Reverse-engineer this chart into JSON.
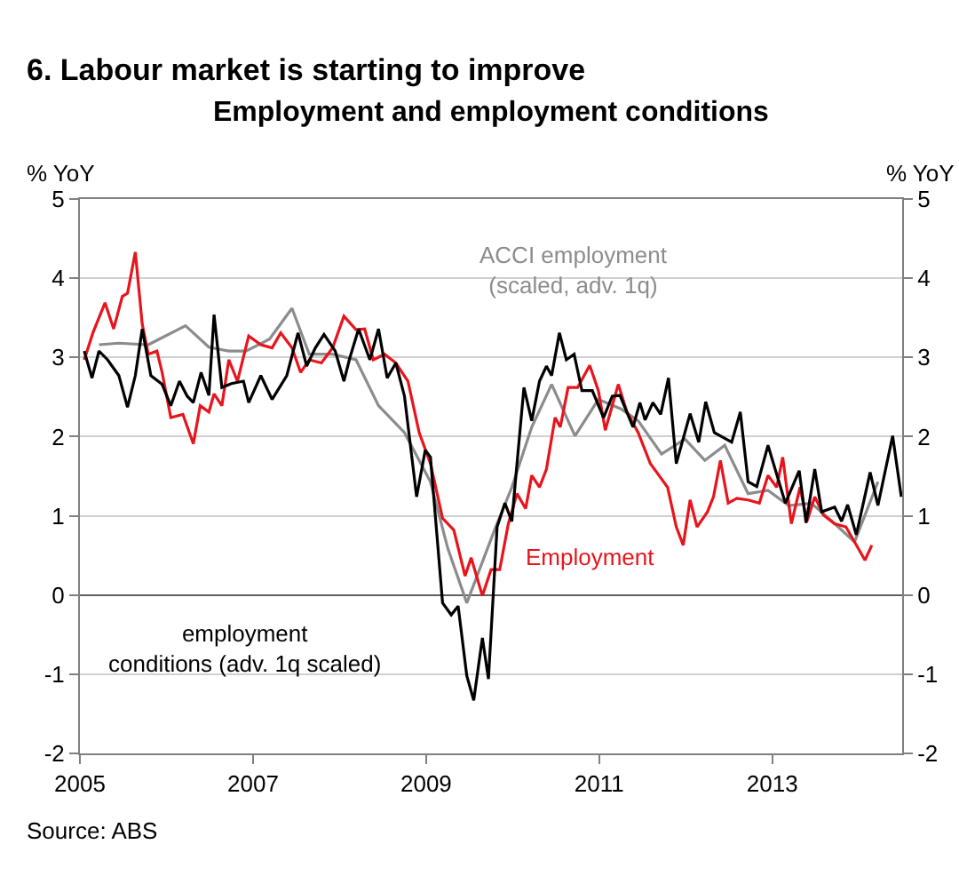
{
  "chart_data": {
    "type": "line",
    "title": "6. Labour market is starting to improve",
    "subtitle": "Employment and employment conditions",
    "ylabel": "% YoY",
    "y2label": "% YoY",
    "xlim": [
      2005,
      2014.5
    ],
    "xticks": [
      2005,
      2007,
      2009,
      2011,
      2013
    ],
    "ylim": [
      -2,
      5
    ],
    "yticks": [
      -2,
      -1,
      0,
      1,
      2,
      3,
      4,
      5
    ],
    "y2lim": [
      -2,
      5
    ],
    "y2ticks": [
      -2,
      -1,
      0,
      1,
      2,
      3,
      4,
      5
    ],
    "grid": "y",
    "legend": false,
    "marker": "none",
    "line_style": "solid",
    "annotations": [
      "Source: ABS"
    ],
    "series": [
      {
        "name": "ACCI employment\n(scaled, adv. 1q)",
        "color": "#8c8c8c",
        "x": [
          2005.22,
          2005.45,
          2005.79,
          2006.22,
          2006.49,
          2006.72,
          2006.92,
          2007.19,
          2007.45,
          2007.65,
          2007.92,
          2008.19,
          2008.45,
          2008.75,
          2009.05,
          2009.25,
          2009.47,
          2009.79,
          2009.99,
          2010.22,
          2010.45,
          2010.72,
          2010.99,
          2011.25,
          2011.45,
          2011.72,
          2011.99,
          2012.22,
          2012.45,
          2012.72,
          2012.95,
          2013.19,
          2013.45,
          2013.72,
          2013.95,
          2014.22
        ],
        "values": [
          3.16,
          3.18,
          3.16,
          3.4,
          3.13,
          3.08,
          3.08,
          3.23,
          3.62,
          3.04,
          3.04,
          2.97,
          2.39,
          2.05,
          1.43,
          0.59,
          -0.1,
          0.82,
          1.36,
          2.12,
          2.66,
          2.01,
          2.47,
          2.35,
          2.2,
          1.78,
          1.97,
          1.7,
          1.89,
          1.28,
          1.32,
          1.13,
          1.16,
          0.9,
          0.67,
          1.43
        ]
      },
      {
        "name": "Employment",
        "color": "#e8141c",
        "x": [
          2005.05,
          2005.15,
          2005.29,
          2005.39,
          2005.49,
          2005.55,
          2005.64,
          2005.72,
          2005.79,
          2005.89,
          2005.95,
          2006.05,
          2006.19,
          2006.31,
          2006.39,
          2006.49,
          2006.55,
          2006.64,
          2006.72,
          2006.82,
          2006.95,
          2007.09,
          2007.22,
          2007.32,
          2007.45,
          2007.55,
          2007.65,
          2007.79,
          2007.92,
          2008.05,
          2008.19,
          2008.29,
          2008.39,
          2008.52,
          2008.65,
          2008.79,
          2008.92,
          2009.05,
          2009.19,
          2009.32,
          2009.45,
          2009.52,
          2009.65,
          2009.75,
          2009.85,
          2009.95,
          2010.05,
          2010.15,
          2010.22,
          2010.31,
          2010.39,
          2010.49,
          2010.55,
          2010.64,
          2010.75,
          2010.89,
          2010.99,
          2011.07,
          2011.22,
          2011.32,
          2011.45,
          2011.59,
          2011.69,
          2011.79,
          2011.89,
          2011.97,
          2012.05,
          2012.13,
          2012.25,
          2012.32,
          2012.4,
          2012.49,
          2012.59,
          2012.72,
          2012.85,
          2012.95,
          2013.05,
          2013.12,
          2013.22,
          2013.32,
          2013.4,
          2013.49,
          2013.59,
          2013.72,
          2013.85,
          2013.95,
          2014.07,
          2014.15
        ],
        "values": [
          2.97,
          3.31,
          3.69,
          3.36,
          3.77,
          3.81,
          4.33,
          3.42,
          3.04,
          3.08,
          2.81,
          2.24,
          2.28,
          1.91,
          2.39,
          2.31,
          2.54,
          2.39,
          2.97,
          2.7,
          3.27,
          3.16,
          3.12,
          3.31,
          3.12,
          2.81,
          2.97,
          2.93,
          3.12,
          3.52,
          3.35,
          3.36,
          2.97,
          3.04,
          2.93,
          2.7,
          2.05,
          1.66,
          0.97,
          0.82,
          0.24,
          0.47,
          -0.01,
          0.32,
          0.32,
          0.9,
          1.28,
          1.09,
          1.51,
          1.36,
          1.59,
          2.24,
          2.12,
          2.62,
          2.62,
          2.9,
          2.58,
          2.08,
          2.66,
          2.31,
          2.05,
          1.66,
          1.51,
          1.36,
          0.86,
          0.63,
          1.2,
          0.86,
          1.05,
          1.24,
          1.7,
          1.16,
          1.22,
          1.2,
          1.16,
          1.51,
          1.36,
          1.74,
          0.9,
          1.36,
          0.93,
          1.24,
          1.01,
          0.9,
          0.86,
          0.67,
          0.44,
          0.63
        ]
      },
      {
        "name": "employment\nconditions (adv. 1q scaled)",
        "color": "#000000",
        "x": [
          2005.05,
          2005.14,
          2005.22,
          2005.32,
          2005.45,
          2005.55,
          2005.64,
          2005.72,
          2005.82,
          2005.95,
          2006.05,
          2006.15,
          2006.24,
          2006.31,
          2006.4,
          2006.49,
          2006.55,
          2006.64,
          2006.75,
          2006.89,
          2006.95,
          2007.09,
          2007.22,
          2007.39,
          2007.52,
          2007.62,
          2007.72,
          2007.82,
          2007.95,
          2008.05,
          2008.12,
          2008.22,
          2008.35,
          2008.45,
          2008.55,
          2008.65,
          2008.75,
          2008.89,
          2008.99,
          2009.05,
          2009.19,
          2009.29,
          2009.37,
          2009.47,
          2009.55,
          2009.65,
          2009.72,
          2009.82,
          2009.91,
          2009.99,
          2010.05,
          2010.13,
          2010.22,
          2010.31,
          2010.39,
          2010.45,
          2010.54,
          2010.62,
          2010.71,
          2010.8,
          2010.92,
          2011.05,
          2011.15,
          2011.24,
          2011.39,
          2011.47,
          2011.53,
          2011.62,
          2011.71,
          2011.8,
          2011.89,
          2012.05,
          2012.15,
          2012.23,
          2012.33,
          2012.53,
          2012.63,
          2012.72,
          2012.82,
          2012.95,
          2013.15,
          2013.31,
          2013.39,
          2013.49,
          2013.57,
          2013.72,
          2013.8,
          2013.87,
          2013.97,
          2014.13,
          2014.22,
          2014.39,
          2014.49
        ],
        "values": [
          3.08,
          2.74,
          3.08,
          2.97,
          2.77,
          2.37,
          2.77,
          3.36,
          2.77,
          2.66,
          2.39,
          2.7,
          2.51,
          2.43,
          2.81,
          2.52,
          3.54,
          2.62,
          2.67,
          2.7,
          2.43,
          2.77,
          2.47,
          2.77,
          3.31,
          2.89,
          3.12,
          3.29,
          3.08,
          2.7,
          3.0,
          3.36,
          2.97,
          3.36,
          2.74,
          2.93,
          2.51,
          1.24,
          1.83,
          1.74,
          -0.1,
          -0.25,
          -0.14,
          -1.02,
          -1.33,
          -0.54,
          -1.06,
          0.86,
          1.16,
          0.93,
          1.66,
          2.62,
          2.2,
          2.7,
          2.89,
          2.77,
          3.31,
          2.97,
          3.04,
          2.58,
          2.58,
          2.24,
          2.51,
          2.52,
          2.12,
          2.43,
          2.21,
          2.43,
          2.28,
          2.74,
          1.66,
          2.29,
          1.93,
          2.44,
          2.05,
          1.93,
          2.31,
          1.43,
          1.37,
          1.89,
          1.16,
          1.57,
          0.91,
          1.59,
          1.05,
          1.11,
          0.93,
          1.14,
          0.76,
          1.55,
          1.13,
          2.01,
          1.24
        ]
      }
    ]
  }
}
